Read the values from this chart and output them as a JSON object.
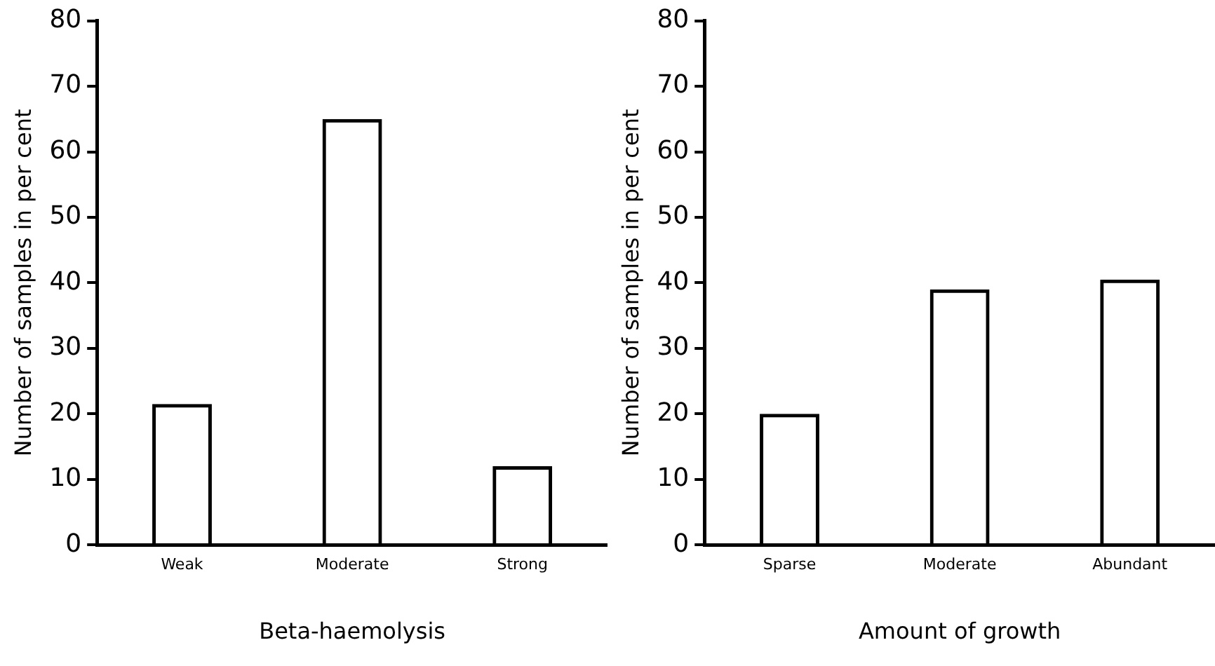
{
  "chart_data": [
    {
      "type": "bar",
      "categories": [
        "Weak",
        "Moderate",
        "Strong"
      ],
      "values": [
        21.5,
        65,
        12
      ],
      "color": "#000000",
      "xlabel": "Beta-haemolysis",
      "ylabel": "Number of samples in per cent",
      "ylim": [
        0,
        80
      ],
      "yticks": [
        0,
        10,
        20,
        30,
        40,
        50,
        60,
        70,
        80
      ],
      "grid": false,
      "legend": false
    },
    {
      "type": "bar",
      "categories": [
        "Sparse",
        "Moderate",
        "Abundant"
      ],
      "values": [
        20,
        39,
        40.5
      ],
      "color": "#000000",
      "xlabel": "Amount of growth",
      "ylabel": "Number of samples in per cent",
      "ylim": [
        0,
        80
      ],
      "yticks": [
        0,
        10,
        20,
        30,
        40,
        50,
        60,
        70,
        80
      ],
      "grid": false,
      "legend": false
    }
  ]
}
